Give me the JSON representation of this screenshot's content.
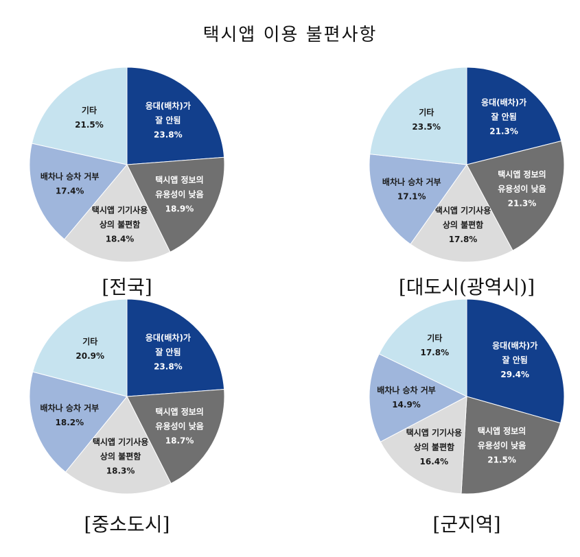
{
  "title": "택시앱 이용 불편사항",
  "colors": {
    "dispatch": "#123f8c",
    "info": "#707070",
    "device": "#dcdcdc",
    "refusal": "#9fb6dc",
    "etc": "#c6e3ef"
  },
  "chart_data": [
    {
      "type": "pie",
      "caption": "[전국]",
      "slices": [
        {
          "key": "dispatch",
          "label": [
            "응대(배차)가",
            "잘 안됨"
          ],
          "value": 23.8,
          "value_text": "23.8%",
          "color": "#123f8c"
        },
        {
          "key": "info",
          "label": [
            "택시앱 정보의",
            "유용성이 낮음"
          ],
          "value": 18.9,
          "value_text": "18.9%",
          "color": "#707070"
        },
        {
          "key": "device",
          "label": [
            "택시앱 기기사용",
            "상의 불편함"
          ],
          "value": 18.4,
          "value_text": "18.4%",
          "color": "#dcdcdc"
        },
        {
          "key": "refusal",
          "label": [
            "배차나 승차 거부"
          ],
          "value": 17.4,
          "value_text": "17.4%",
          "color": "#9fb6dc"
        },
        {
          "key": "etc",
          "label": [
            "기타"
          ],
          "value": 21.5,
          "value_text": "21.5%",
          "color": "#c6e3ef"
        }
      ]
    },
    {
      "type": "pie",
      "caption": "[대도시(광역시)]",
      "slices": [
        {
          "key": "dispatch",
          "label": [
            "응대(배차)가",
            "잘 안됨"
          ],
          "value": 21.3,
          "value_text": "21.3%",
          "color": "#123f8c"
        },
        {
          "key": "info",
          "label": [
            "택시앱 정보의",
            "유용성이 낮음"
          ],
          "value": 21.3,
          "value_text": "21.3%",
          "color": "#707070"
        },
        {
          "key": "device",
          "label": [
            "택시앱 기기사용",
            "상의 불편함"
          ],
          "value": 17.8,
          "value_text": "17.8%",
          "color": "#dcdcdc"
        },
        {
          "key": "refusal",
          "label": [
            "배차나 승차 거부"
          ],
          "value": 17.1,
          "value_text": "17.1%",
          "color": "#9fb6dc"
        },
        {
          "key": "etc",
          "label": [
            "기타"
          ],
          "value": 23.5,
          "value_text": "23.5%",
          "color": "#c6e3ef"
        }
      ]
    },
    {
      "type": "pie",
      "caption": "[중소도시]",
      "slices": [
        {
          "key": "dispatch",
          "label": [
            "응대(배차)가",
            "잘 안됨"
          ],
          "value": 23.8,
          "value_text": "23.8%",
          "color": "#123f8c"
        },
        {
          "key": "info",
          "label": [
            "택시앱 정보의",
            "유용성이 낮음"
          ],
          "value": 18.7,
          "value_text": "18.7%",
          "color": "#707070"
        },
        {
          "key": "device",
          "label": [
            "택시앱 기기사용",
            "상의 불편함"
          ],
          "value": 18.3,
          "value_text": "18.3%",
          "color": "#dcdcdc"
        },
        {
          "key": "refusal",
          "label": [
            "배차나 승차 거부"
          ],
          "value": 18.2,
          "value_text": "18.2%",
          "color": "#9fb6dc"
        },
        {
          "key": "etc",
          "label": [
            "기타"
          ],
          "value": 20.9,
          "value_text": "20.9%",
          "color": "#c6e3ef"
        }
      ]
    },
    {
      "type": "pie",
      "caption": "[군지역]",
      "slices": [
        {
          "key": "dispatch",
          "label": [
            "응대(배차)가",
            "잘 안됨"
          ],
          "value": 29.4,
          "value_text": "29.4%",
          "color": "#123f8c"
        },
        {
          "key": "info",
          "label": [
            "택시앱 정보의",
            "유용성이 낮음"
          ],
          "value": 21.5,
          "value_text": "21.5%",
          "color": "#707070"
        },
        {
          "key": "device",
          "label": [
            "택시앱 기기사용",
            "상의 불편함"
          ],
          "value": 16.4,
          "value_text": "16.4%",
          "color": "#dcdcdc"
        },
        {
          "key": "refusal",
          "label": [
            "배차나 승차 거부"
          ],
          "value": 14.9,
          "value_text": "14.9%",
          "color": "#9fb6dc"
        },
        {
          "key": "etc",
          "label": [
            "기타"
          ],
          "value": 17.8,
          "value_text": "17.8%",
          "color": "#c6e3ef"
        }
      ]
    }
  ]
}
